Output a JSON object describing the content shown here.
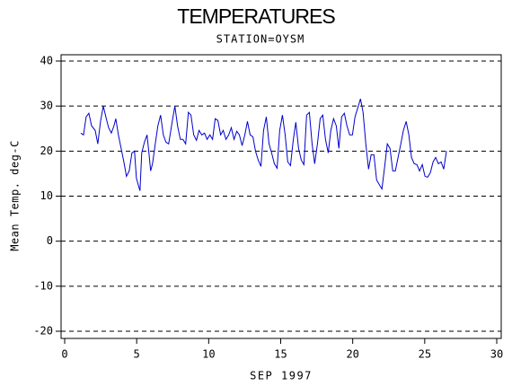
{
  "chart_data": {
    "type": "line",
    "title": "TEMPERATURES",
    "subtitle": "STATION=OYSM",
    "x_label": "SEP 1997",
    "y_label": "Mean Temp. deg-C",
    "xlim": [
      0,
      30
    ],
    "xticks": [
      0,
      5,
      10,
      15,
      20,
      25,
      30
    ],
    "ylim": [
      -20,
      40
    ],
    "yticks": [
      -20,
      -10,
      0,
      10,
      20,
      30,
      40
    ],
    "grid": true,
    "series": [
      {
        "color": "#0000cc",
        "x": [
          1.12,
          1.31,
          1.49,
          1.68,
          1.87,
          2.12,
          2.3,
          2.49,
          2.68,
          2.86,
          3.05,
          3.24,
          3.42,
          3.55,
          3.73,
          3.92,
          4.11,
          4.29,
          4.48,
          4.67,
          4.85,
          4.98,
          5.1,
          5.23,
          5.35,
          5.54,
          5.72,
          5.85,
          5.97,
          6.1,
          6.29,
          6.47,
          6.66,
          6.85,
          7.03,
          7.22,
          7.47,
          7.65,
          7.84,
          8.03,
          8.21,
          8.4,
          8.59,
          8.77,
          8.96,
          9.15,
          9.33,
          9.52,
          9.71,
          9.89,
          10.08,
          10.27,
          10.45,
          10.64,
          10.83,
          11.01,
          11.2,
          11.39,
          11.57,
          11.76,
          11.95,
          12.13,
          12.32,
          12.51,
          12.69,
          12.88,
          13.07,
          13.25,
          13.44,
          13.63,
          13.81,
          14.0,
          14.19,
          14.37,
          14.56,
          14.75,
          14.93,
          15.12,
          15.31,
          15.49,
          15.68,
          15.87,
          16.05,
          16.24,
          16.43,
          16.61,
          16.8,
          16.99,
          17.18,
          17.36,
          17.55,
          17.74,
          17.92,
          18.11,
          18.3,
          18.48,
          18.67,
          18.86,
          19.04,
          19.23,
          19.42,
          19.6,
          19.79,
          19.98,
          20.16,
          20.35,
          20.54,
          20.72,
          20.91,
          21.1,
          21.28,
          21.47,
          21.66,
          21.84,
          22.03,
          22.22,
          22.4,
          22.59,
          22.78,
          22.96,
          23.15,
          23.34,
          23.52,
          23.71,
          23.9,
          24.08,
          24.27,
          24.46,
          24.64,
          24.83,
          25.02,
          25.2,
          25.39,
          25.58,
          25.76,
          25.95,
          26.14,
          26.32,
          26.51
        ],
        "values": [
          24,
          23.6,
          27.6,
          28.4,
          25.6,
          24.6,
          21.6,
          26.6,
          30,
          27.6,
          25.2,
          24,
          25.6,
          27.2,
          23.6,
          20.6,
          17.6,
          14.4,
          15.6,
          19.6,
          20,
          14,
          12.6,
          11.2,
          19.6,
          22,
          23.6,
          19.6,
          15.6,
          17.2,
          21.6,
          25.6,
          28,
          23.6,
          22,
          21.6,
          26.6,
          30,
          25.6,
          22.6,
          22.6,
          21.6,
          28.6,
          28,
          23.6,
          22.4,
          24.6,
          23.6,
          24,
          22.6,
          23.6,
          22.6,
          27.2,
          26.8,
          23.6,
          24.6,
          22.6,
          23.6,
          25.2,
          22.6,
          24.4,
          23.6,
          21.2,
          23.6,
          26.6,
          23.6,
          23.2,
          20,
          18,
          16.6,
          24.6,
          27.6,
          21.6,
          19.6,
          17.2,
          16.2,
          24.6,
          28,
          23.6,
          17.6,
          16.8,
          22.4,
          26.4,
          20.6,
          18,
          17,
          28,
          28.6,
          21.6,
          17.2,
          21.6,
          27.2,
          28,
          22.6,
          19.6,
          24.6,
          27.2,
          25.6,
          20.6,
          27.6,
          28.4,
          25.6,
          23.6,
          23.6,
          27.6,
          29.6,
          31.6,
          28.6,
          21.6,
          16,
          19.2,
          19.2,
          13.6,
          12.6,
          11.6,
          16.6,
          21.6,
          20.6,
          15.6,
          15.6,
          18.6,
          21.6,
          24.6,
          26.6,
          23.6,
          18.6,
          17.2,
          17,
          15.6,
          17,
          14.4,
          14.2,
          15.2,
          17.6,
          18.6,
          17.2,
          17.6,
          16,
          20
        ]
      }
    ]
  }
}
